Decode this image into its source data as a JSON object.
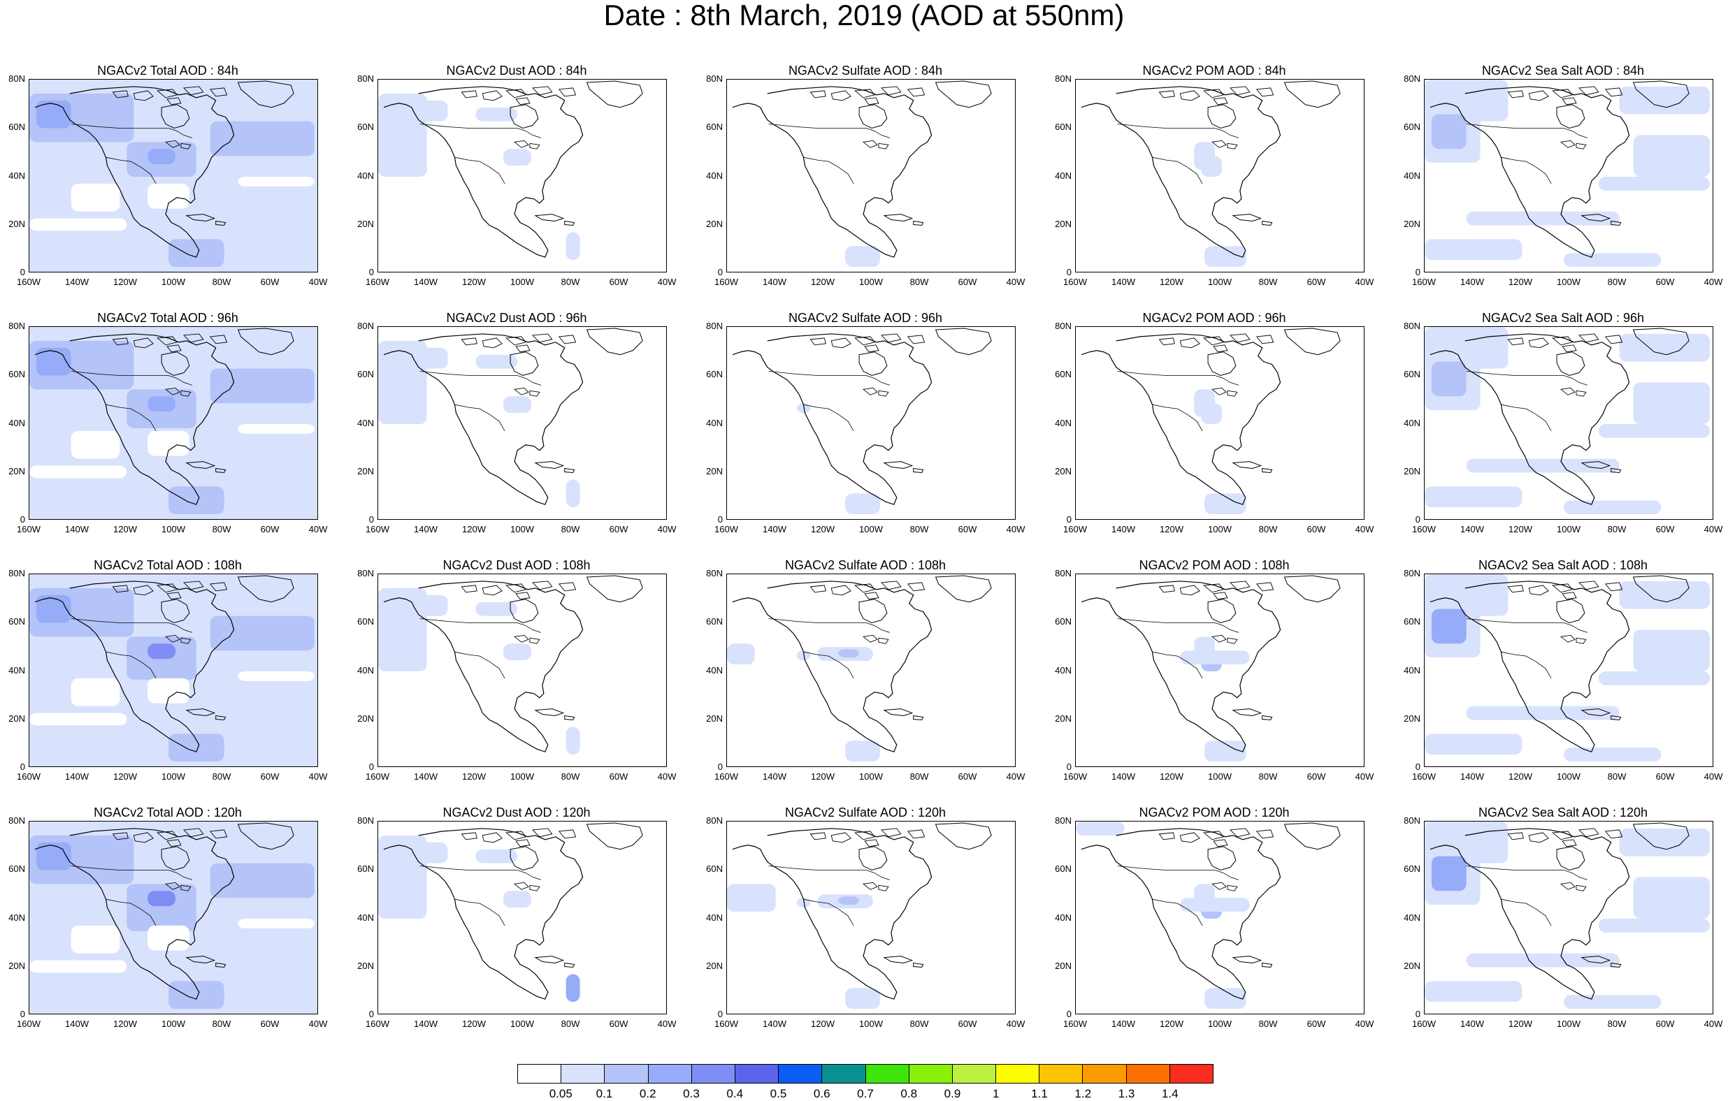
{
  "title": "Date : 8th March, 2019 (AOD at 550nm)",
  "lat_ticks": [
    "80N",
    "60N",
    "40N",
    "20N",
    "0"
  ],
  "lon_ticks": [
    "160W",
    "140W",
    "120W",
    "100W",
    "80W",
    "60W",
    "40W"
  ],
  "panels": [
    [
      "NGACv2 Total AOD : 84h",
      "NGACv2 Dust AOD : 84h",
      "NGACv2 Sulfate AOD : 84h",
      "NGACv2 POM AOD : 84h",
      "NGACv2 Sea Salt AOD : 84h"
    ],
    [
      "NGACv2 Total AOD : 96h",
      "NGACv2 Dust AOD : 96h",
      "NGACv2 Sulfate AOD : 96h",
      "NGACv2 POM AOD : 96h",
      "NGACv2 Sea Salt AOD : 96h"
    ],
    [
      "NGACv2 Total AOD : 108h",
      "NGACv2 Dust AOD : 108h",
      "NGACv2 Sulfate AOD : 108h",
      "NGACv2 POM AOD : 108h",
      "NGACv2 Sea Salt AOD : 108h"
    ],
    [
      "NGACv2 Total AOD : 120h",
      "NGACv2 Dust AOD : 120h",
      "NGACv2 Sulfate AOD : 120h",
      "NGACv2 POM AOD : 120h",
      "NGACv2 Sea Salt  AOD : 120h"
    ]
  ],
  "colorbar": {
    "labels": [
      "0.05",
      "0.1",
      "0.2",
      "0.3",
      "0.4",
      "0.5",
      "0.6",
      "0.7",
      "0.8",
      "0.9",
      "1",
      "1.1",
      "1.2",
      "1.3",
      "1.4"
    ],
    "colors": [
      "#ffffff",
      "#d8e2fc",
      "#b4c3f8",
      "#96acf8",
      "#7f8ef4",
      "#5c64ec",
      "#0a5ef4",
      "#0a9090",
      "#3fe40a",
      "#8af00a",
      "#bcf040",
      "#fdfd00",
      "#fbc300",
      "#fb9b00",
      "#fb7000",
      "#fb2c20"
    ]
  },
  "shading_colors": {
    "light": "#d8e2fc",
    "medium": "#b4c3f8",
    "strong": "#96acf8",
    "deep": "#7f8ef4"
  }
}
